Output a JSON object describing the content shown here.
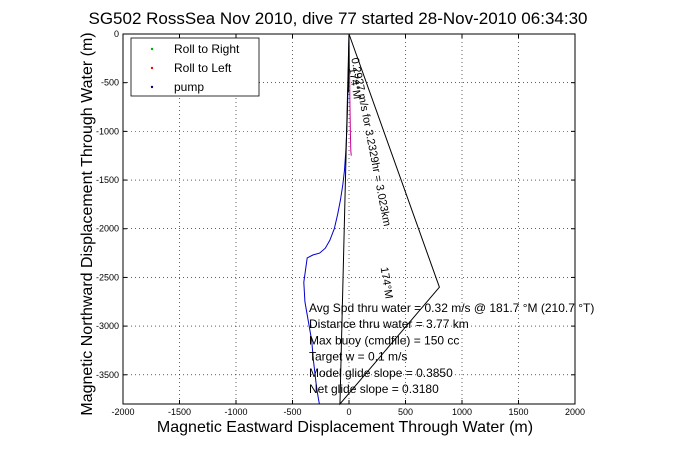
{
  "chart_data": {
    "type": "line",
    "title": "SG502 RossSea Nov 2010, dive 77 started 28-Nov-2010 06:34:30",
    "xlabel": "Magnetic Eastward Displacement Through Water (m)",
    "ylabel": "Magnetic Northward Displacement Through Water (m)",
    "xlim": [
      -2000,
      2000
    ],
    "ylim": [
      -3800,
      0
    ],
    "xticks": [
      -2000,
      -1500,
      -1000,
      -500,
      0,
      500,
      1000,
      1500,
      2000
    ],
    "yticks": [
      0,
      -500,
      -1000,
      -1500,
      -2000,
      -2500,
      -3000,
      -3500
    ],
    "grid": true,
    "legend_position": "top-left",
    "legend": [
      {
        "name": "Roll to Right",
        "color": "#00aa00",
        "marker": "dot"
      },
      {
        "name": "Roll to Left",
        "color": "#ff0000",
        "marker": "dot"
      },
      {
        "name": "pump",
        "color": "#000080",
        "marker": "dot"
      }
    ],
    "series": [
      {
        "color": "#0000cc",
        "x": [
          0,
          -2,
          -6,
          -10,
          -14,
          -20,
          -28,
          -40,
          -55,
          -75,
          -100,
          -130,
          -170,
          -210,
          -260,
          -320,
          -370,
          -400,
          -390,
          -360,
          -330,
          -315,
          -300,
          -290,
          -280,
          -270,
          -262
        ],
        "y": [
          0,
          -200,
          -400,
          -600,
          -800,
          -1000,
          -1200,
          -1400,
          -1550,
          -1700,
          -1850,
          -2000,
          -2120,
          -2200,
          -2250,
          -2270,
          -2300,
          -2550,
          -2750,
          -2950,
          -3150,
          -3350,
          -3500,
          -3600,
          -3680,
          -3750,
          -3800
        ]
      },
      {
        "color": "#cc0099",
        "x": [
          0,
          2,
          5,
          8,
          12,
          16,
          20
        ],
        "y": [
          0,
          -150,
          -400,
          -700,
          -1000,
          -1200,
          -1250
        ]
      },
      {
        "color": "#000000",
        "x": [
          0,
          800,
          -80,
          0
        ],
        "y": [
          0,
          -2600,
          -3800,
          0
        ]
      },
      {
        "color": "#000000",
        "x": [
          0,
          -5
        ],
        "y": [
          0,
          -600
        ]
      }
    ],
    "annotations": [
      {
        "text": "174°M",
        "x": 0,
        "y": -350,
        "angle": 81
      },
      {
        "text": "0.2927 m/s for 3.2329hr = 3.023km",
        "x": 20,
        "y": -250,
        "angle": 79
      },
      {
        "text": "174°M",
        "x": 280,
        "y": -2400,
        "angle": 81
      }
    ],
    "stats": [
      "Avg Spd thru water =  0.32 m/s @ 181.7   °M (210.7 °T)",
      "Distance thru water =  3.77 km",
      "Max buoy (cmdfile) = 150 cc",
      "Target w = 0.1 m/s",
      "Model glide slope = 0.3850",
      "Net glide slope = 0.3180"
    ]
  }
}
